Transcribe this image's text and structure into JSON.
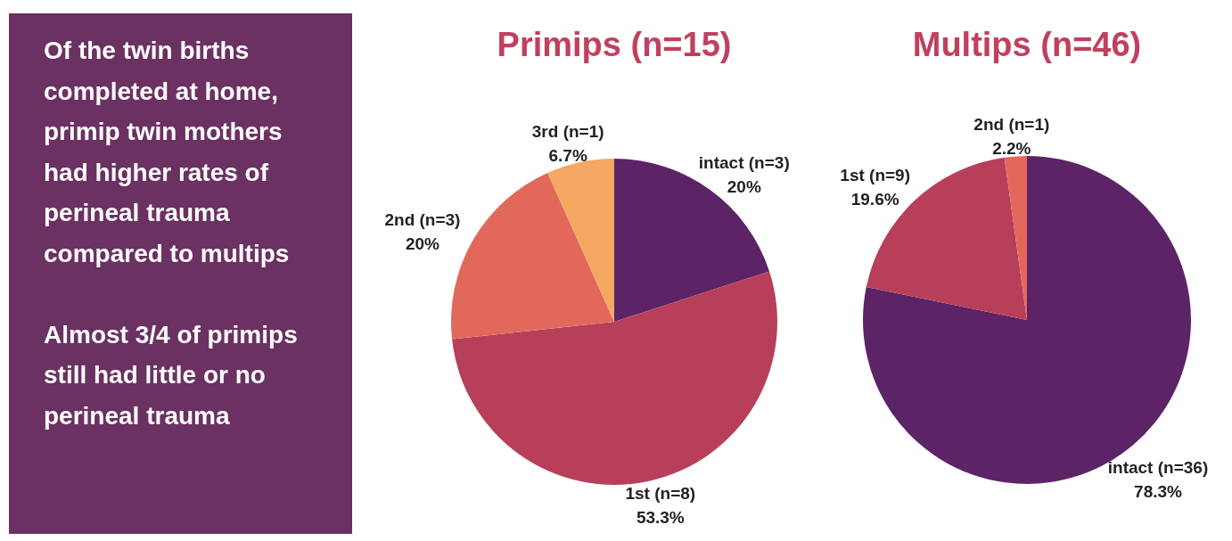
{
  "chart_data": [
    {
      "type": "other",
      "annotations": [
        "Of the twin births completed at home, primip twin mothers had higher rates of perineal trauma compared to multips",
        "Almost 3/4 of primips still had little or no perineal trauma"
      ]
    },
    {
      "type": "pie",
      "title": "Primips (n=15)",
      "categories": [
        "intact (n=3)",
        "1st (n=8)",
        "2nd (n=3)",
        "3rd (n=1)"
      ],
      "values": [
        20,
        53.3,
        20,
        6.7
      ],
      "colors": [
        "#5c2466",
        "#b83f5a",
        "#e3685c",
        "#f4a862"
      ],
      "value_labels": [
        "20%",
        "53.3%",
        "20%",
        "6.7%"
      ]
    },
    {
      "type": "pie",
      "title": "Multips (n=46)",
      "categories": [
        "intact (n=36)",
        "1st (n=9)",
        "2nd (n=1)"
      ],
      "values": [
        78.3,
        19.6,
        2.2
      ],
      "colors": [
        "#5c2466",
        "#b83f5a",
        "#e3685c"
      ],
      "value_labels": [
        "78.3%",
        "19.6%",
        "2.2%"
      ]
    }
  ]
}
